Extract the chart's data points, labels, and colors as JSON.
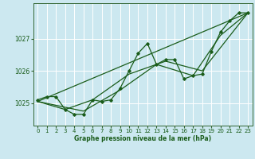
{
  "title": "Graphe pression niveau de la mer (hPa)",
  "bg_color": "#cce8f0",
  "grid_color": "#ffffff",
  "line_color": "#1a5c1a",
  "xlim": [
    -0.5,
    23.5
  ],
  "ylim": [
    1024.3,
    1028.1
  ],
  "yticks": [
    1025,
    1026,
    1027
  ],
  "xticks": [
    0,
    1,
    2,
    3,
    4,
    5,
    6,
    7,
    8,
    9,
    10,
    11,
    12,
    13,
    14,
    15,
    16,
    17,
    18,
    19,
    20,
    21,
    22,
    23
  ],
  "hourly_data": {
    "x": [
      0,
      1,
      2,
      3,
      4,
      5,
      6,
      7,
      8,
      9,
      10,
      11,
      12,
      13,
      14,
      15,
      16,
      17,
      18,
      19,
      20,
      21,
      22,
      23
    ],
    "y": [
      1025.1,
      1025.2,
      1025.2,
      1024.8,
      1024.65,
      1024.65,
      1025.1,
      1025.05,
      1025.1,
      1025.45,
      1026.0,
      1026.55,
      1026.85,
      1026.2,
      1026.35,
      1026.35,
      1025.75,
      1025.85,
      1025.9,
      1026.6,
      1027.2,
      1027.55,
      1027.8,
      1027.8
    ]
  },
  "trend_line": {
    "x": [
      0,
      23
    ],
    "y": [
      1025.05,
      1027.8
    ]
  },
  "smooth_line2": {
    "x": [
      0,
      3,
      6,
      10,
      14,
      18,
      23
    ],
    "y": [
      1025.05,
      1024.8,
      1025.1,
      1025.9,
      1026.3,
      1026.0,
      1027.8
    ]
  },
  "smooth_line3": {
    "x": [
      0,
      5,
      9,
      13,
      17,
      20,
      23
    ],
    "y": [
      1025.05,
      1024.75,
      1025.4,
      1026.2,
      1025.85,
      1027.1,
      1027.8
    ]
  }
}
